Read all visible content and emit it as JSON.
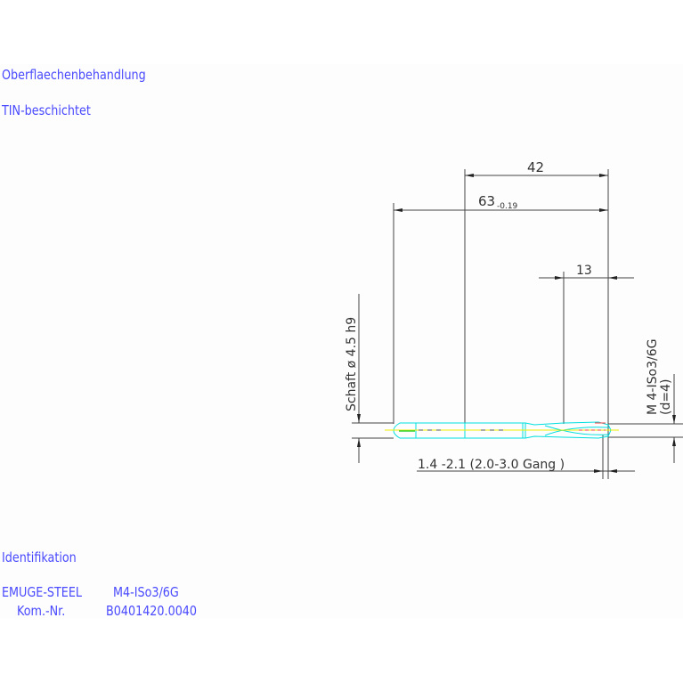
{
  "surface": {
    "heading": "Oberflaechenbehandlung",
    "value": "TIN-beschichtet"
  },
  "identification": {
    "heading": "Identifikation",
    "line1_left": "EMUGE-STEEL",
    "line1_right": "M4-ISo3/6G",
    "line2_left": "Kom.-Nr.",
    "line2_right": "B0401420.0040"
  },
  "drawing": {
    "dim_thread_length": "42",
    "dim_total_length": "63",
    "dim_total_tolerance": "-0.19",
    "dim_flute": "13",
    "shank_label": "Schaft  ø 4.5  h9",
    "thread_label": "M  4-ISo3/6G",
    "thread_sub": "(d=4)",
    "chamfer_label": "1.4 -2.1 (2.0-3.0  Gang  )"
  },
  "colors": {
    "text": "#4a4aff",
    "lines": "#333333",
    "tool": "#00e0e0",
    "centerline": "#f0f000",
    "accent": "#ff4040"
  }
}
